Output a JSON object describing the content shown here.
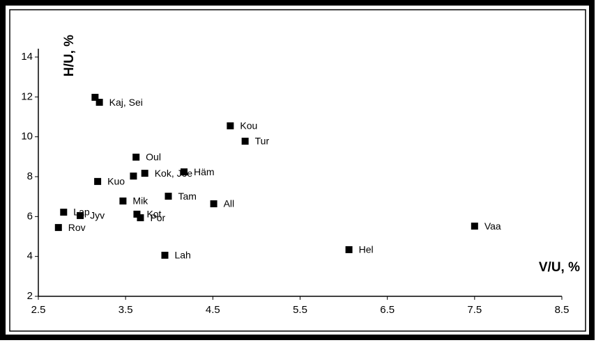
{
  "chart_data": {
    "type": "scatter",
    "x_label": "V/U, %",
    "y_label": "H/U, %",
    "xlim": [
      2.5,
      8.5
    ],
    "xticks": [
      2.5,
      3.5,
      4.5,
      5.5,
      6.5,
      7.5,
      8.5
    ],
    "ylim": [
      2,
      14
    ],
    "yticks": [
      2,
      4,
      6,
      8,
      10,
      12,
      14
    ],
    "color": "#000000",
    "labels": [
      null,
      "Kaj, Sei",
      "Kou",
      "Tur",
      "Oul",
      null,
      "Kok, Joe",
      "Häm",
      "Kuo",
      "Tam",
      "Mik",
      "All",
      "Lap",
      "Jyv",
      "Kot",
      "Por",
      "Rov",
      "Lah",
      "Hel",
      "Vaa"
    ],
    "x": [
      3.15,
      3.2,
      4.7,
      4.87,
      3.62,
      3.59,
      3.72,
      4.17,
      3.18,
      3.99,
      3.47,
      4.51,
      2.79,
      2.98,
      3.63,
      3.67,
      2.73,
      3.95,
      6.06,
      7.5
    ],
    "y": [
      11.98,
      11.73,
      10.55,
      9.78,
      8.98,
      8.03,
      8.17,
      8.24,
      7.76,
      7.02,
      6.78,
      6.64,
      6.22,
      6.05,
      6.12,
      5.94,
      5.45,
      4.06,
      4.34,
      5.52
    ]
  }
}
